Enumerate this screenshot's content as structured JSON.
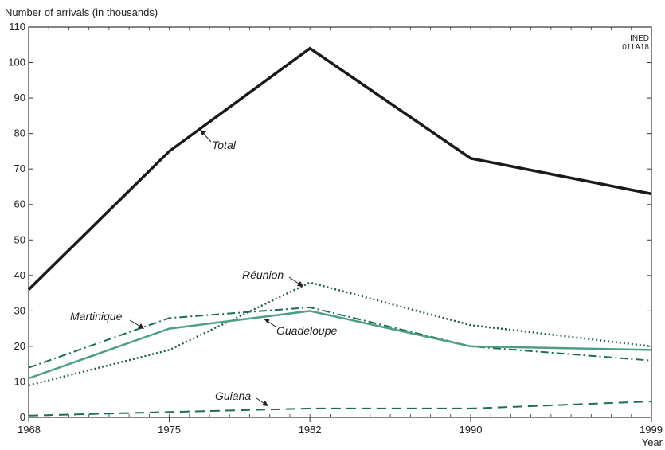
{
  "chart_data": {
    "type": "line",
    "ylabel": "Number of arrivals (in thousands)",
    "xlabel": "Year",
    "source_code": [
      "INED",
      "011A18"
    ],
    "x": [
      1968,
      1975,
      1982,
      1990,
      1999
    ],
    "xticks": [
      "1968",
      "1975",
      "1982",
      "1990",
      "1999"
    ],
    "ylim": [
      0,
      110
    ],
    "yticks": [
      0,
      10,
      20,
      30,
      40,
      50,
      60,
      70,
      80,
      90,
      100,
      110
    ],
    "grid": false,
    "series": [
      {
        "name": "Total",
        "values": [
          36,
          75,
          104,
          73,
          63
        ],
        "color": "#1a1a1a",
        "style": "solid"
      },
      {
        "name": "Réunion",
        "values": [
          9,
          19,
          38,
          26,
          20
        ],
        "color": "#1e5e3e",
        "style": "dotted"
      },
      {
        "name": "Martinique",
        "values": [
          14,
          28,
          31,
          20,
          16
        ],
        "color": "#1e6e52",
        "style": "dashdot"
      },
      {
        "name": "Guadeloupe",
        "values": [
          11,
          25,
          30,
          20,
          19
        ],
        "color": "#4e9e86",
        "style": "solid"
      },
      {
        "name": "Guiana",
        "values": [
          0.5,
          1.5,
          2.5,
          2.5,
          4.5
        ],
        "color": "#1e6e52",
        "style": "dashed"
      }
    ]
  }
}
